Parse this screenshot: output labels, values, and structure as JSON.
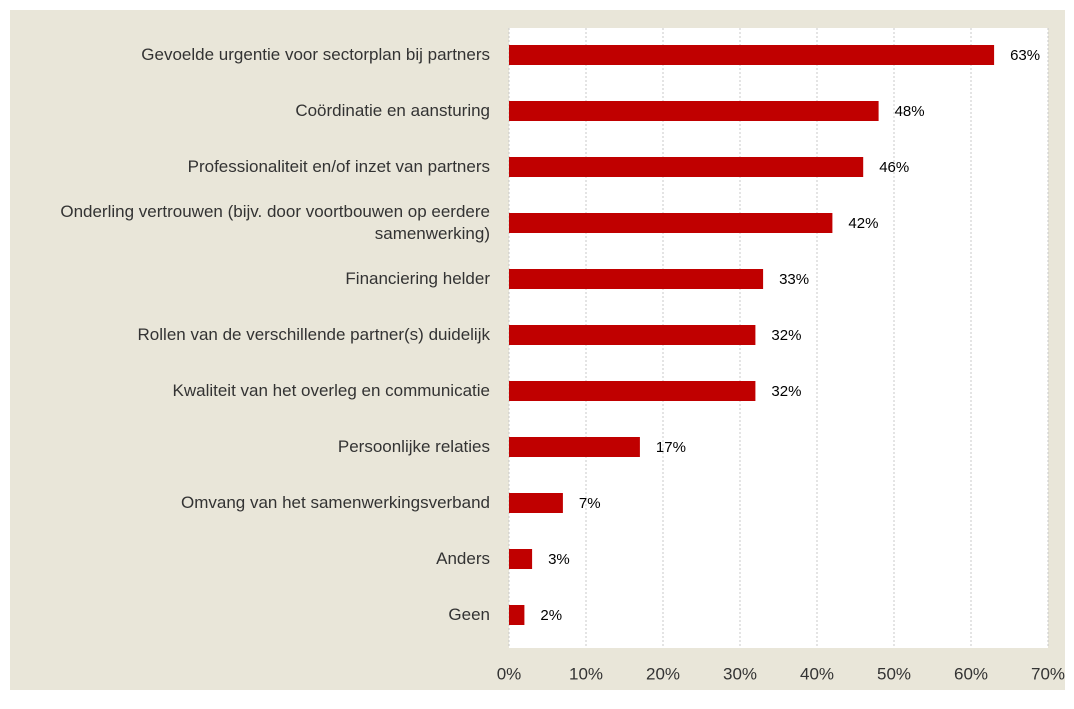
{
  "chart_data": {
    "type": "bar",
    "orientation": "horizontal",
    "categories": [
      "Gevoelde urgentie voor sectorplan bij partners",
      "Coördinatie en aansturing",
      "Professionaliteit en/of inzet van partners",
      "Onderling vertrouwen (bijv. door voortbouwen op eerdere samenwerking)",
      "Financiering helder",
      "Rollen van de verschillende partner(s) duidelijk",
      "Kwaliteit van het overleg en communicatie",
      "Persoonlijke relaties",
      "Omvang van het samenwerkingsverband",
      "Anders",
      "Geen"
    ],
    "values": [
      63,
      48,
      46,
      42,
      33,
      32,
      32,
      17,
      7,
      3,
      2
    ],
    "value_labels": [
      "63%",
      "48%",
      "46%",
      "42%",
      "33%",
      "32%",
      "32%",
      "17%",
      "7%",
      "3%",
      "2%"
    ],
    "color": "#c00000",
    "xlim": [
      0,
      70
    ],
    "xticks": [
      {
        "value": 0,
        "label": "0%"
      },
      {
        "value": 10,
        "label": "10%"
      },
      {
        "value": 20,
        "label": "20%"
      },
      {
        "value": 30,
        "label": "30%"
      },
      {
        "value": 40,
        "label": "40%"
      },
      {
        "value": 50,
        "label": "50%"
      },
      {
        "value": 60,
        "label": "60%"
      },
      {
        "value": 70,
        "label": "70%"
      }
    ],
    "grid": true
  }
}
